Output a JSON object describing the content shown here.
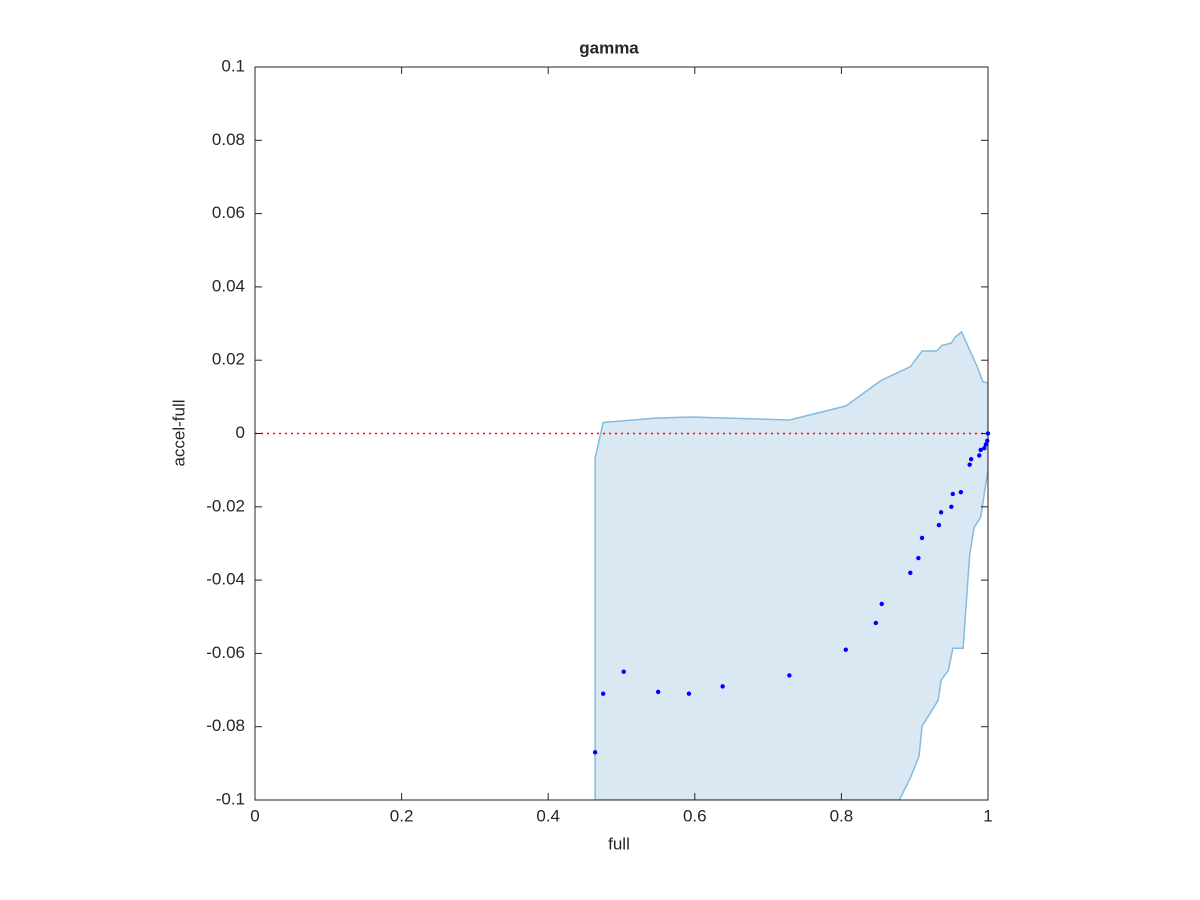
{
  "chart_data": {
    "type": "scatter",
    "title": "gamma",
    "xlabel": "full",
    "ylabel": "accel-full",
    "x": [
      0.464,
      0.475,
      0.503,
      0.55,
      0.592,
      0.638,
      0.729,
      0.806,
      0.847,
      0.855,
      0.894,
      0.905,
      0.91,
      0.933,
      0.936,
      0.95,
      0.952,
      0.963,
      0.975,
      0.977,
      0.988,
      0.99,
      0.995,
      0.997,
      0.999,
      1.0
    ],
    "y": [
      -0.087,
      -0.071,
      -0.065,
      -0.0705,
      -0.071,
      -0.069,
      -0.066,
      -0.059,
      -0.0517,
      -0.0465,
      -0.038,
      -0.034,
      -0.0285,
      -0.025,
      -0.0215,
      -0.02,
      -0.0165,
      -0.016,
      -0.0085,
      -0.007,
      -0.006,
      -0.0045,
      -0.004,
      -0.003,
      -0.002,
      0
    ],
    "color": "#0000ff",
    "band": {
      "fill": "#d9e8f3",
      "edge": "#86bbdf",
      "x": [
        0.464,
        0.475,
        0.546,
        0.593,
        0.729,
        0.806,
        0.855,
        0.894,
        0.91,
        0.93,
        0.937,
        0.95,
        0.955,
        0.964,
        0.975,
        0.986,
        0.993,
        1.0,
        1.0,
        0.99,
        0.981,
        0.975,
        0.966,
        0.952,
        0.946,
        0.936,
        0.932,
        0.91,
        0.906,
        0.894,
        0.879,
        0.464
      ],
      "y": [
        -0.0067,
        0.003,
        0.0042,
        0.0045,
        0.0037,
        0.0075,
        0.0146,
        0.0182,
        0.0225,
        0.0225,
        0.024,
        0.0247,
        0.0263,
        0.0277,
        0.0228,
        0.0179,
        0.0141,
        0.0138,
        -0.01,
        -0.0228,
        -0.0257,
        -0.0331,
        -0.0586,
        -0.0586,
        -0.0646,
        -0.0673,
        -0.0728,
        -0.0799,
        -0.088,
        -0.094,
        -0.1,
        -0.1
      ]
    },
    "hline": {
      "value": 0,
      "color": "#ff0000"
    },
    "xlim": [
      0,
      1
    ],
    "ylim": [
      -0.1,
      0.1
    ],
    "xticks": [
      0,
      0.2,
      0.4,
      0.6,
      0.8,
      1
    ],
    "yticks": [
      -0.1,
      -0.08,
      -0.06,
      -0.04,
      -0.02,
      0,
      0.02,
      0.04,
      0.06,
      0.08,
      0.1
    ]
  }
}
